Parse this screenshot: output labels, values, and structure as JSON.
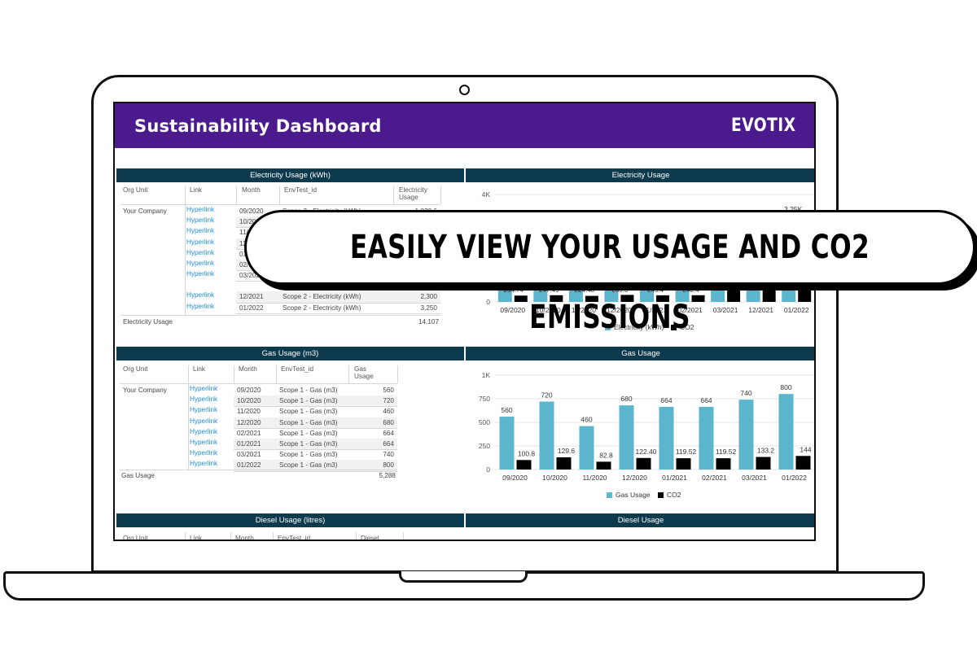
{
  "dashboard": {
    "title": "Sustainability Dashboard",
    "logo": "EVOTIX",
    "header_color": "#4b1a8c",
    "section_color": "#0e3a4e"
  },
  "banner": {
    "text": "EASILY VIEW YOUR USAGE AND CO2 EMISSIONS"
  },
  "electricity_table": {
    "title": "Electricity Usage (kWh)",
    "headers": [
      "Org Unit",
      "Link",
      "Month",
      "EnvTest_id",
      "Electricity Usage"
    ],
    "org_unit": "Your Company",
    "rows": [
      {
        "link": "Hyperlink",
        "month": "09/2020",
        "envtest": "Scope 2 - Electricity (kWh)",
        "value": "1,020.6"
      },
      {
        "link": "Hyperlink",
        "month": "10/2020",
        "envtest": "",
        "value": ""
      },
      {
        "link": "Hyperlink",
        "month": "11/2020",
        "envtest": "",
        "value": ""
      },
      {
        "link": "Hyperlink",
        "month": "12/2020",
        "envtest": "",
        "value": ""
      },
      {
        "link": "Hyperlink",
        "month": "01/2021",
        "envtest": "",
        "value": ""
      },
      {
        "link": "Hyperlink",
        "month": "02/2021",
        "envtest": "",
        "value": ""
      },
      {
        "link": "Hyperlink",
        "month": "03/2021",
        "envtest": "",
        "value": ""
      },
      {
        "link": "Hyperlink",
        "month": "12/2021",
        "envtest": "Scope 2 - Electricity (kWh)",
        "value": "2,300"
      },
      {
        "link": "Hyperlink",
        "month": "01/2022",
        "envtest": "Scope 2 - Electricity (kWh)",
        "value": "3,250"
      }
    ],
    "total_label": "Electricity Usage",
    "total_value": "14,107"
  },
  "gas_table": {
    "title": "Gas Usage (m3)",
    "headers": [
      "Org Unit",
      "Link",
      "Month",
      "EnvTest_id",
      "Gas Usage"
    ],
    "org_unit": "Your Company",
    "rows": [
      {
        "link": "Hyperlink",
        "month": "09/2020",
        "envtest": "Scope 1 - Gas (m3)",
        "value": "560"
      },
      {
        "link": "Hyperlink",
        "month": "10/2020",
        "envtest": "Scope 1 - Gas (m3)",
        "value": "720"
      },
      {
        "link": "Hyperlink",
        "month": "11/2020",
        "envtest": "Scope 1 - Gas (m3)",
        "value": "460"
      },
      {
        "link": "Hyperlink",
        "month": "12/2020",
        "envtest": "Scope 1 - Gas (m3)",
        "value": "680"
      },
      {
        "link": "Hyperlink",
        "month": "02/2021",
        "envtest": "Scope 1 - Gas (m3)",
        "value": "664"
      },
      {
        "link": "Hyperlink",
        "month": "01/2021",
        "envtest": "Scope 1 - Gas (m3)",
        "value": "664"
      },
      {
        "link": "Hyperlink",
        "month": "03/2021",
        "envtest": "Scope 1 - Gas (m3)",
        "value": "740"
      },
      {
        "link": "Hyperlink",
        "month": "01/2022",
        "envtest": "Scope 1 - Gas (m3)",
        "value": "800"
      }
    ],
    "total_label": "Gas Usage",
    "total_value": "5,288"
  },
  "diesel_table": {
    "title": "Diesel Usage (litres)",
    "headers": [
      "Org Unit",
      "Link",
      "Month",
      "EnvTest_id",
      "Diesel"
    ]
  },
  "electricity_chart_title": "Electricity Usage",
  "gas_chart_title": "Gas Usage",
  "diesel_chart_title": "Diesel Usage",
  "chart_data": [
    {
      "type": "bar",
      "title": "Electricity Usage",
      "categories": [
        "09/2020",
        "10/2020",
        "11/2020",
        "12/2020",
        "01/2021",
        "02/2021",
        "03/2021",
        "12/2021",
        "01/2022"
      ],
      "y_ticks": [
        "4K",
        "0"
      ],
      "ylim": [
        0,
        4000
      ],
      "series": [
        {
          "name": "Electricity (kWh)",
          "color": "#5bb5cc",
          "values": [
            1020.6,
            1100,
            1000,
            1150,
            1200,
            1100,
            1500,
            2300,
            3250
          ]
        },
        {
          "name": "CO2",
          "color": "#000000",
          "values": [
            234.74,
            247.49,
            224.48,
            260.8,
            245.4,
            248.4,
            500,
            510,
            520
          ]
        }
      ],
      "visible_co2_labels": [
        "234.74",
        "247.49",
        "224.48",
        "260.8",
        "245.4",
        "248.4"
      ],
      "visible_top_label": "3.25K",
      "legend_position": "bottom"
    },
    {
      "type": "bar",
      "title": "Gas Usage",
      "categories": [
        "09/2020",
        "10/2020",
        "11/2020",
        "12/2020",
        "01/2021",
        "02/2021",
        "03/2021",
        "01/2022"
      ],
      "y_ticks": [
        "1K",
        "750",
        "500",
        "250",
        "0"
      ],
      "ylim": [
        0,
        1000
      ],
      "series": [
        {
          "name": "Gas Usage",
          "color": "#5bb5cc",
          "values": [
            560,
            720,
            460,
            680,
            664,
            664,
            740,
            800
          ]
        },
        {
          "name": "CO2",
          "color": "#000000",
          "values": [
            100.8,
            129.6,
            82.8,
            122.4,
            119.52,
            119.52,
            133.2,
            144
          ]
        }
      ],
      "value_labels": {
        "Gas Usage": [
          "560",
          "720",
          "460",
          "680",
          "664",
          "664",
          "740",
          "800"
        ],
        "CO2": [
          "100.8",
          "129.6",
          "82.8",
          "122.40",
          "119.52",
          "119.52",
          "133.2",
          "144"
        ]
      },
      "legend_position": "bottom"
    }
  ]
}
